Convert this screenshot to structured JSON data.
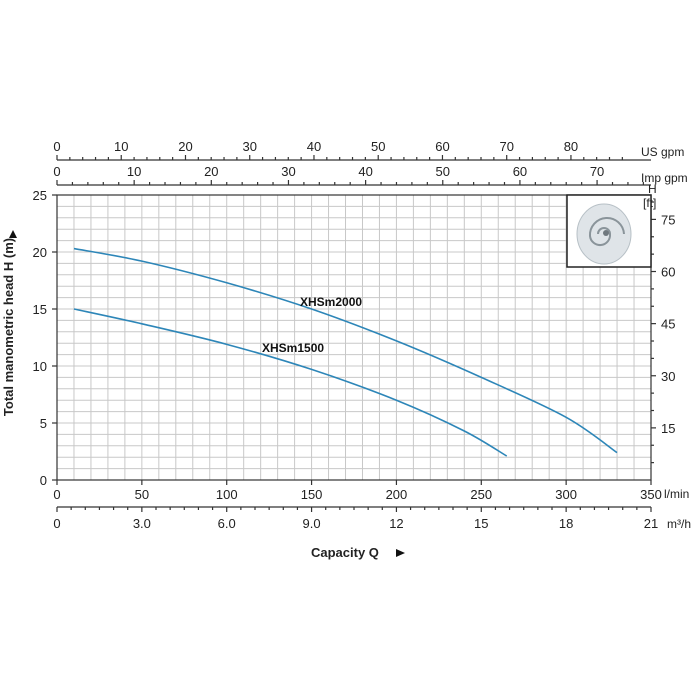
{
  "chart_data": {
    "type": "line",
    "xlabel": "Capacity Q",
    "ylabel": "Total manometric head H (m)",
    "xlim": [
      0,
      350
    ],
    "ylim": [
      0,
      25
    ],
    "grid": true,
    "x_unit": "l/min",
    "x_ticks": [
      "0",
      "50",
      "100",
      "150",
      "200",
      "250",
      "300",
      "350"
    ],
    "y_ticks": [
      "0",
      "5",
      "10",
      "15",
      "20",
      "25"
    ],
    "secondary_axes": {
      "us_gpm": {
        "unit": "US gpm",
        "ticks": [
          "0",
          "10",
          "20",
          "30",
          "40",
          "50",
          "60",
          "70",
          "80"
        ]
      },
      "imp_gpm": {
        "unit": "Imp gpm",
        "ticks": [
          "0",
          "10",
          "20",
          "30",
          "40",
          "50",
          "60",
          "70"
        ]
      },
      "m3h": {
        "unit": "m³/h",
        "ticks": [
          "0",
          "3.0",
          "6.0",
          "9.0",
          "12",
          "15",
          "18",
          "21"
        ]
      },
      "ft": {
        "unit_line1": "H",
        "unit_line2": "[ft]",
        "ticks": [
          "15",
          "30",
          "45",
          "60",
          "75"
        ]
      }
    },
    "series": [
      {
        "name": "XHSm2000",
        "color": "#2d86b8",
        "x": [
          10,
          50,
          100,
          150,
          200,
          250,
          300,
          330
        ],
        "y": [
          20.3,
          19.2,
          17.3,
          15.0,
          12.2,
          9.0,
          5.5,
          2.4
        ]
      },
      {
        "name": "XHSm1500",
        "color": "#2d86b8",
        "x": [
          10,
          50,
          100,
          150,
          200,
          240,
          265
        ],
        "y": [
          15.0,
          13.7,
          11.9,
          9.7,
          7.0,
          4.3,
          2.1
        ]
      }
    ]
  },
  "inset_icon": "impeller-image"
}
